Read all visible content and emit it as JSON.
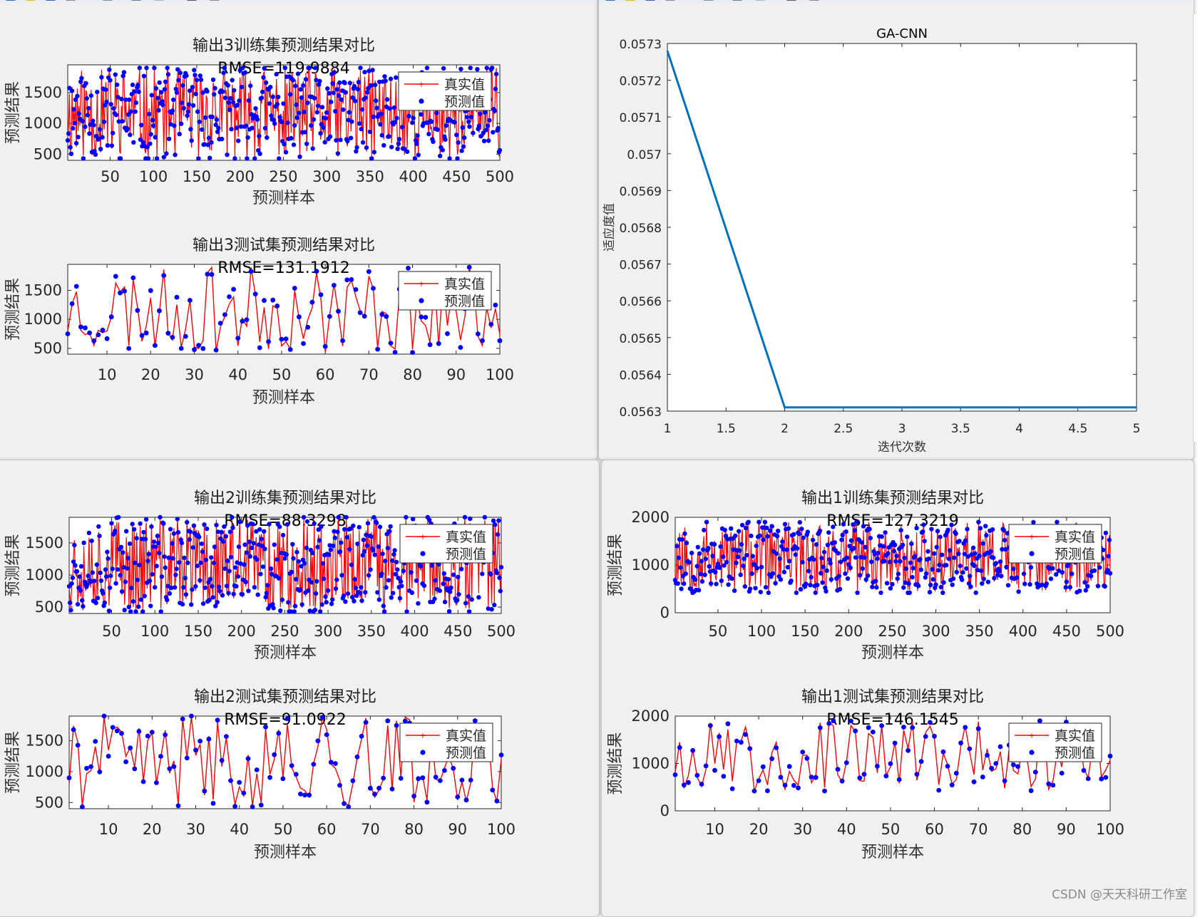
{
  "watermark": "CSDN @天天科研工作室",
  "colors": {
    "true_series": "#ff0000",
    "pred_series": "#0000ff",
    "fitness_line": "#0072bd"
  },
  "legend": {
    "true_label": "真实值",
    "pred_label": "预测值"
  },
  "chart_data": [
    {
      "id": "out3-train",
      "type": "line",
      "title": "输出3训练集预测结果对比",
      "subtitle": "RMSE=119.9884",
      "xlabel": "预测样本",
      "ylabel": "预测结果",
      "xlim": [
        1,
        500
      ],
      "ylim": [
        400,
        1950
      ],
      "xticks": [
        50,
        100,
        150,
        200,
        250,
        300,
        350,
        400,
        450,
        500
      ],
      "yticks": [
        500,
        1000,
        1500
      ],
      "n": 500,
      "seed": 11,
      "rmse": 119.9884,
      "legend_position": "top-right",
      "grid": false
    },
    {
      "id": "out3-test",
      "type": "line",
      "title": "输出3测试集预测结果对比",
      "subtitle": "RMSE=131.1912",
      "xlabel": "预测样本",
      "ylabel": "预测结果",
      "xlim": [
        1,
        100
      ],
      "ylim": [
        400,
        1950
      ],
      "xticks": [
        10,
        20,
        30,
        40,
        50,
        60,
        70,
        80,
        90,
        100
      ],
      "yticks": [
        500,
        1000,
        1500
      ],
      "n": 100,
      "seed": 23,
      "rmse": 131.1912,
      "legend_position": "top-right",
      "grid": false
    },
    {
      "id": "fitness",
      "type": "line",
      "title": "GA-CNN",
      "xlabel": "迭代次数",
      "ylabel": "适应度值",
      "xlim": [
        1,
        5
      ],
      "ylim": [
        0.0563,
        0.0573
      ],
      "xticks": [
        1,
        1.5,
        2,
        2.5,
        3,
        3.5,
        4,
        4.5,
        5
      ],
      "yticks": [
        0.0563,
        0.0564,
        0.0565,
        0.0566,
        0.0567,
        0.0568,
        0.0569,
        0.057,
        0.0571,
        0.0572,
        0.0573
      ],
      "x": [
        1,
        2,
        3,
        4,
        5
      ],
      "y": [
        0.05728,
        0.05631,
        0.05631,
        0.05631,
        0.05631
      ],
      "grid": false
    },
    {
      "id": "out2-train",
      "type": "line",
      "title": "输出2训练集预测结果对比",
      "subtitle": "RMSE=88.3298",
      "xlabel": "预测样本",
      "ylabel": "预测结果",
      "xlim": [
        1,
        500
      ],
      "ylim": [
        400,
        1900
      ],
      "xticks": [
        50,
        100,
        150,
        200,
        250,
        300,
        350,
        400,
        450,
        500
      ],
      "yticks": [
        500,
        1000,
        1500
      ],
      "n": 500,
      "seed": 37,
      "rmse": 88.3298,
      "legend_position": "top-right",
      "grid": false
    },
    {
      "id": "out2-test",
      "type": "line",
      "title": "输出2测试集预测结果对比",
      "subtitle": "RMSE=91.0922",
      "xlabel": "预测样本",
      "ylabel": "预测结果",
      "xlim": [
        1,
        100
      ],
      "ylim": [
        400,
        1900
      ],
      "xticks": [
        10,
        20,
        30,
        40,
        50,
        60,
        70,
        80,
        90,
        100
      ],
      "yticks": [
        500,
        1000,
        1500
      ],
      "n": 100,
      "seed": 41,
      "rmse": 91.0922,
      "legend_position": "top-right",
      "grid": false
    },
    {
      "id": "out1-train",
      "type": "line",
      "title": "输出1训练集预测结果对比",
      "subtitle": "RMSE=127.3219",
      "xlabel": "预测样本",
      "ylabel": "预测结果",
      "xlim": [
        1,
        500
      ],
      "ylim": [
        0,
        2000
      ],
      "xticks": [
        50,
        100,
        150,
        200,
        250,
        300,
        350,
        400,
        450,
        500
      ],
      "yticks": [
        0,
        1000,
        2000
      ],
      "n": 500,
      "seed": 53,
      "rmse": 127.3219,
      "legend_position": "top-right",
      "grid": false
    },
    {
      "id": "out1-test",
      "type": "line",
      "title": "输出1测试集预测结果对比",
      "subtitle": "RMSE=146.1545",
      "xlabel": "预测样本",
      "ylabel": "预测结果",
      "xlim": [
        1,
        100
      ],
      "ylim": [
        0,
        2000
      ],
      "xticks": [
        10,
        20,
        30,
        40,
        50,
        60,
        70,
        80,
        90,
        100
      ],
      "yticks": [
        0,
        1000,
        2000
      ],
      "n": 100,
      "seed": 67,
      "rmse": 146.1545,
      "legend_position": "top-right",
      "grid": false
    }
  ]
}
